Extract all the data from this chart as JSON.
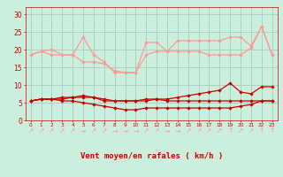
{
  "x": [
    0,
    1,
    2,
    3,
    4,
    5,
    6,
    7,
    8,
    9,
    10,
    11,
    12,
    13,
    14,
    15,
    16,
    17,
    18,
    19,
    20,
    21,
    22,
    23
  ],
  "series": {
    "rafales_upper": [
      18.5,
      19.5,
      20.0,
      18.5,
      18.5,
      23.5,
      18.5,
      16.5,
      13.5,
      13.5,
      13.5,
      22.0,
      22.0,
      19.5,
      22.5,
      22.5,
      22.5,
      22.5,
      22.5,
      23.5,
      23.5,
      21.0,
      26.5,
      18.5
    ],
    "rafales_lower": [
      18.5,
      19.5,
      18.5,
      18.5,
      18.5,
      16.5,
      16.5,
      16.0,
      14.0,
      13.5,
      13.5,
      18.5,
      19.5,
      19.5,
      19.5,
      19.5,
      19.5,
      18.5,
      18.5,
      18.5,
      18.5,
      20.5,
      26.5,
      18.5
    ],
    "vent_upper": [
      5.5,
      6.0,
      6.0,
      6.5,
      6.5,
      7.0,
      6.5,
      6.0,
      5.5,
      5.5,
      5.5,
      6.0,
      6.0,
      6.0,
      6.5,
      7.0,
      7.5,
      8.0,
      8.5,
      10.5,
      8.0,
      7.5,
      9.5,
      9.5
    ],
    "vent_mean": [
      5.5,
      6.0,
      6.0,
      6.0,
      6.5,
      6.5,
      6.5,
      5.5,
      5.5,
      5.5,
      5.5,
      5.5,
      6.0,
      5.5,
      5.5,
      5.5,
      5.5,
      5.5,
      5.5,
      5.5,
      5.5,
      5.5,
      5.5,
      5.5
    ],
    "vent_lower": [
      5.5,
      6.0,
      6.0,
      5.5,
      5.5,
      5.0,
      4.5,
      4.0,
      3.5,
      3.0,
      3.0,
      3.5,
      3.5,
      3.5,
      3.5,
      3.5,
      3.5,
      3.5,
      3.5,
      3.5,
      4.0,
      4.5,
      5.5,
      5.5
    ]
  },
  "arrows": [
    "↗",
    "↗",
    "↗",
    "↗",
    "↗",
    "→",
    "↗",
    "↗",
    "→",
    "→",
    "→",
    "↗",
    "↗",
    "→",
    "→",
    "↗",
    "↗",
    "↗",
    "↗",
    "↑",
    "↗",
    "↗",
    "↑",
    "↑"
  ],
  "bg_color": "#cceedd",
  "grid_color": "#aaccbb",
  "line_color_light": "#ff9999",
  "line_color_dark": "#cc0000",
  "xlabel": "Vent moyen/en rafales ( km/h )",
  "tick_color": "#cc0000",
  "ylim": [
    0,
    32
  ],
  "yticks": [
    0,
    5,
    10,
    15,
    20,
    25,
    30
  ],
  "xlim": [
    -0.5,
    23.5
  ]
}
